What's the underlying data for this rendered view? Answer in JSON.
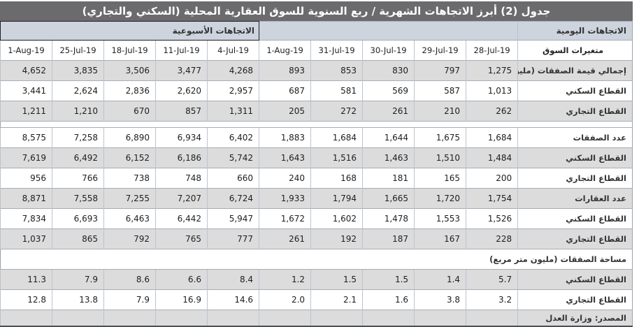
{
  "title": "جدول (2) أبرز الاتجاهات الشهرية / ربع السنوية للسوق العقارية المحلية (السكني والتجاري)",
  "colors": {
    "titlebar_bg": "#6b6b6e",
    "group_header_bg": "#cdd4de",
    "stripe_gray": "#dcdcdc",
    "stripe_white": "#ffffff",
    "grid_border": "#a6adb7"
  },
  "table": {
    "group_headers": {
      "weekly": "الاتجاهات الأسبوعية",
      "daily": "الاتجاهات اليومية"
    },
    "variables_label": "متغيرات السوق",
    "weekly_dates": [
      "1-Aug-19",
      "25-Jul-19",
      "18-Jul-19",
      "11-Jul-19",
      "4-Jul-19"
    ],
    "daily_dates": [
      "1-Aug-19",
      "31-Jul-19",
      "30-Jul-19",
      "29-Jul-19",
      "28-Jul-19"
    ],
    "rows": [
      {
        "kind": "data",
        "shade": "gray",
        "label": "إجمالي قيمة الصفقات (مليون ريال)",
        "weekly": [
          "4,652",
          "3,835",
          "3,506",
          "3,477",
          "4,268"
        ],
        "daily": [
          "893",
          "853",
          "830",
          "797",
          "1,275"
        ]
      },
      {
        "kind": "data",
        "shade": "white",
        "label": "القطاع السكني",
        "weekly": [
          "3,441",
          "2,624",
          "2,836",
          "2,620",
          "2,957"
        ],
        "daily": [
          "687",
          "581",
          "569",
          "587",
          "1,013"
        ]
      },
      {
        "kind": "data",
        "shade": "gray",
        "label": "القطاع التجاري",
        "weekly": [
          "1,211",
          "1,210",
          "670",
          "857",
          "1,311"
        ],
        "daily": [
          "205",
          "272",
          "261",
          "210",
          "262"
        ]
      },
      {
        "kind": "separator"
      },
      {
        "kind": "data",
        "shade": "white",
        "label": "عدد الصفقات",
        "weekly": [
          "8,575",
          "7,258",
          "6,890",
          "6,934",
          "6,402"
        ],
        "daily": [
          "1,883",
          "1,684",
          "1,644",
          "1,675",
          "1,684"
        ]
      },
      {
        "kind": "data",
        "shade": "gray",
        "label": "القطاع السكني",
        "weekly": [
          "7,619",
          "6,492",
          "6,152",
          "6,186",
          "5,742"
        ],
        "daily": [
          "1,643",
          "1,516",
          "1,463",
          "1,510",
          "1,484"
        ]
      },
      {
        "kind": "data",
        "shade": "white",
        "label": "القطاع التجاري",
        "weekly": [
          "956",
          "766",
          "738",
          "748",
          "660"
        ],
        "daily": [
          "240",
          "168",
          "181",
          "165",
          "200"
        ]
      },
      {
        "kind": "data",
        "shade": "gray",
        "label": "عدد العقارات",
        "weekly": [
          "8,871",
          "7,558",
          "7,255",
          "7,207",
          "6,724"
        ],
        "daily": [
          "1,933",
          "1,794",
          "1,665",
          "1,720",
          "1,754"
        ]
      },
      {
        "kind": "data",
        "shade": "white",
        "label": "القطاع السكني",
        "weekly": [
          "7,834",
          "6,693",
          "6,463",
          "6,442",
          "5,947"
        ],
        "daily": [
          "1,672",
          "1,602",
          "1,478",
          "1,553",
          "1,526"
        ]
      },
      {
        "kind": "data",
        "shade": "gray",
        "label": "القطاع التجاري",
        "weekly": [
          "1,037",
          "865",
          "792",
          "765",
          "777"
        ],
        "daily": [
          "261",
          "192",
          "187",
          "167",
          "228"
        ]
      },
      {
        "kind": "span",
        "shade": "white",
        "label": "مساحة الصفقات (مليون متر مربع)"
      },
      {
        "kind": "data",
        "shade": "gray",
        "label": "القطاع السكني",
        "weekly": [
          "11.3",
          "7.9",
          "8.6",
          "6.6",
          "8.4"
        ],
        "daily": [
          "1.2",
          "1.5",
          "1.5",
          "1.4",
          "5.7"
        ]
      },
      {
        "kind": "data",
        "shade": "white",
        "label": "القطاع التجاري",
        "weekly": [
          "12.8",
          "13.8",
          "7.9",
          "16.9",
          "14.6"
        ],
        "daily": [
          "2.0",
          "2.1",
          "1.6",
          "3.8",
          "3.2"
        ]
      },
      {
        "kind": "source",
        "shade": "gray",
        "label": "المصدر: وزارة العدل"
      }
    ]
  }
}
